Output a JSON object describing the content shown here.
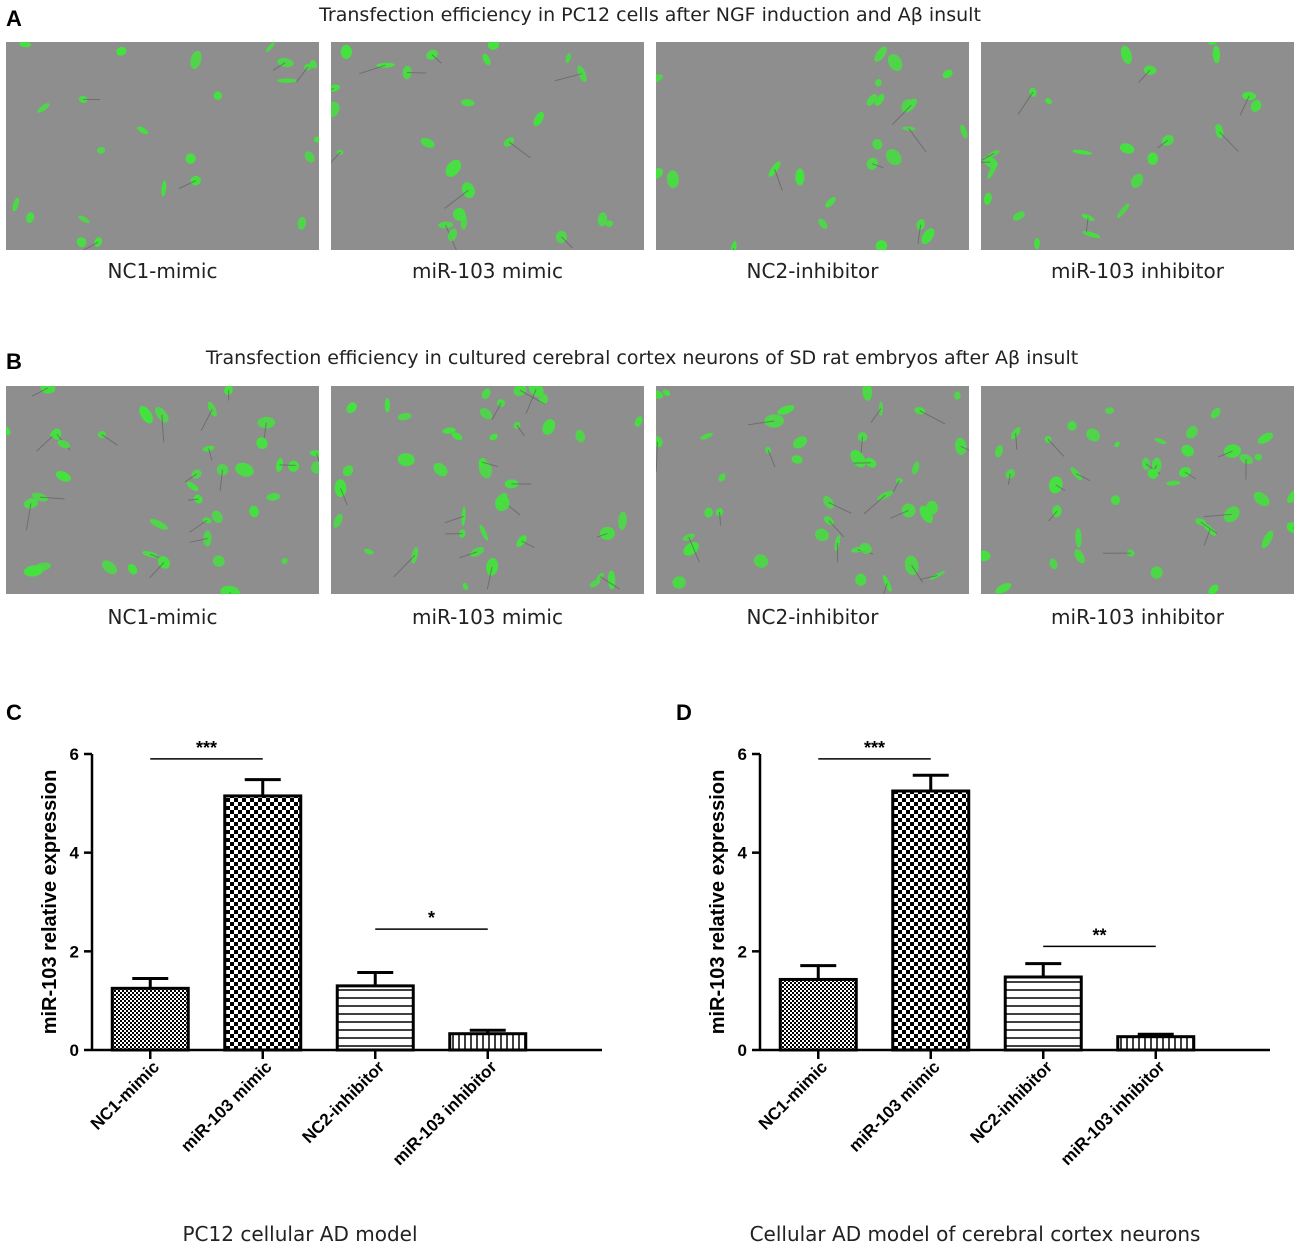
{
  "panels": {
    "A": {
      "letter": "A",
      "title": "Transfection efficiency in PC12 cells after NGF induction and Aβ insult",
      "labels": [
        "NC1-mimic",
        "miR-103 mimic",
        "NC2-inhibitor",
        "miR-103 inhibitor"
      ]
    },
    "B": {
      "letter": "B",
      "title": "Transfection efficiency in cultured cerebral cortex neurons of SD rat embryos after Aβ insult",
      "labels": [
        "NC1-mimic",
        "miR-103 mimic",
        "NC2-inhibitor",
        "miR-103 inhibitor"
      ]
    },
    "C": {
      "letter": "C",
      "caption": "PC12 cellular AD model"
    },
    "D": {
      "letter": "D",
      "caption": "Cellular AD model of cerebral cortex neurons"
    }
  },
  "colors": {
    "micro_background": "#8e8e8e",
    "cell_green": "#44e23e",
    "bar_stroke": "#000000"
  },
  "chart_data": [
    {
      "type": "bar",
      "panel": "C",
      "categories": [
        "NC1-mimic",
        "miR-103 mimic",
        "NC2-inhibitor",
        "miR-103 inhibitor"
      ],
      "values": [
        1.25,
        5.15,
        1.3,
        0.33
      ],
      "errors": [
        0.2,
        0.33,
        0.27,
        0.07
      ],
      "patterns": [
        "fine-checker",
        "checker",
        "horizontal-lines",
        "vertical-lines"
      ],
      "ylabel": "miR-103 relative expression",
      "xlabel": "",
      "ylim": [
        0,
        6
      ],
      "yticks": [
        0,
        2,
        4,
        6
      ],
      "significance": [
        {
          "from": 0,
          "to": 1,
          "label": "***",
          "y": 5.9
        },
        {
          "from": 2,
          "to": 3,
          "label": "*",
          "y": 2.45
        }
      ]
    },
    {
      "type": "bar",
      "panel": "D",
      "categories": [
        "NC1-mimic",
        "miR-103 mimic",
        "NC2-inhibitor",
        "miR-103 inhibitor"
      ],
      "values": [
        1.43,
        5.25,
        1.48,
        0.27
      ],
      "errors": [
        0.28,
        0.32,
        0.27,
        0.05
      ],
      "patterns": [
        "fine-checker",
        "checker",
        "horizontal-lines",
        "vertical-lines"
      ],
      "ylabel": "miR-103 relative expression",
      "xlabel": "",
      "ylim": [
        0,
        6
      ],
      "yticks": [
        0,
        2,
        4,
        6
      ],
      "significance": [
        {
          "from": 0,
          "to": 1,
          "label": "***",
          "y": 5.9
        },
        {
          "from": 2,
          "to": 3,
          "label": "**",
          "y": 2.1
        }
      ]
    }
  ]
}
